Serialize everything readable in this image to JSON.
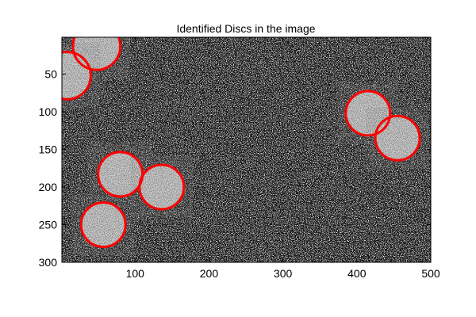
{
  "chart_data": {
    "type": "scatter",
    "title": "Identified Discs in the image",
    "xlabel": "",
    "ylabel": "",
    "xlim": [
      1,
      500
    ],
    "ylim": [
      1,
      300
    ],
    "y_axis_direction": "reverse",
    "x_ticks": [
      100,
      200,
      300,
      400,
      500
    ],
    "y_ticks": [
      50,
      100,
      150,
      200,
      250,
      300
    ],
    "grid": false,
    "legend": "none",
    "image_background": "grayscale noise",
    "circle_color": "#ff0000",
    "discs": [
      {
        "x": 48,
        "y": 13,
        "r": 32
      },
      {
        "x": 8,
        "y": 52,
        "r": 32
      },
      {
        "x": 415,
        "y": 102,
        "r": 30
      },
      {
        "x": 455,
        "y": 135,
        "r": 30
      },
      {
        "x": 80,
        "y": 183,
        "r": 30
      },
      {
        "x": 136,
        "y": 200,
        "r": 30
      },
      {
        "x": 57,
        "y": 250,
        "r": 30
      }
    ]
  }
}
